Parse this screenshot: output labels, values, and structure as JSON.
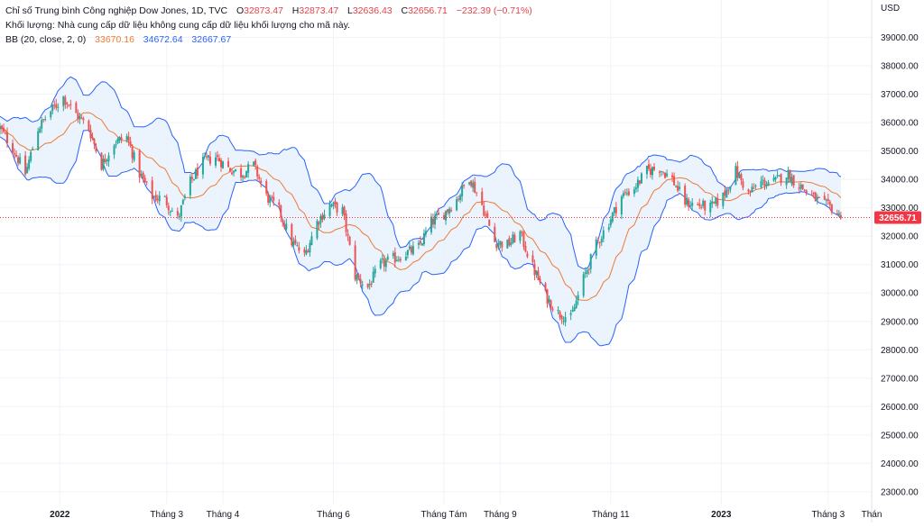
{
  "legend": {
    "title": "Chỉ số Trung bình Công nghiệp Dow Jones, 1D, TVC",
    "o_label": "O",
    "o_value": "32873.47",
    "h_label": "H",
    "h_value": "32873.47",
    "l_label": "L",
    "l_value": "32636.43",
    "c_label": "C",
    "c_value": "32656.71",
    "change": "−232.39 (−0.71%)",
    "volume_note": "Khối lượng: Nhà cung cấp dữ liệu không cung cấp dữ liệu khối lượng cho mã này.",
    "bb_label": "BB (20, close, 2, 0)",
    "bb_basis": "33670.16",
    "bb_upper": "34672.64",
    "bb_lower": "32667.67"
  },
  "colors": {
    "up": "#26a69a",
    "down": "#ef5350",
    "basis": "#f07a34",
    "band": "#2962ff",
    "band_fill": "#e8f1fb",
    "grid": "#f0f3fa",
    "price_tag": "#f23645"
  },
  "chart_data": {
    "type": "candlestick",
    "currency": "USD",
    "last_price_label": "32656.71",
    "last_price": 32656.71,
    "y_ticks": [
      23000,
      24000,
      25000,
      26000,
      27000,
      28000,
      29000,
      30000,
      31000,
      32000,
      33000,
      34000,
      35000,
      36000,
      37000,
      38000,
      39000
    ],
    "y_tick_labels": [
      "23000.00",
      "24000.00",
      "25000.00",
      "26000.00",
      "27000.00",
      "28000.00",
      "29000.00",
      "30000.00",
      "31000.00",
      "32000.00",
      "33000.00",
      "34000.00",
      "35000.00",
      "36000.00",
      "37000.00",
      "38000.00",
      "39000.00"
    ],
    "ylim": [
      22550,
      39750
    ],
    "x_range": [
      "2021-11-29",
      "2023-03-25"
    ],
    "x_ticks": [
      {
        "date": "2022-01-01",
        "label": "2022",
        "bold": true
      },
      {
        "date": "2022-03-01",
        "label": "Tháng 3",
        "bold": false
      },
      {
        "date": "2022-04-01",
        "label": "Tháng 4",
        "bold": false
      },
      {
        "date": "2022-06-01",
        "label": "Tháng 6",
        "bold": false
      },
      {
        "date": "2022-08-01",
        "label": "Tháng Tám",
        "bold": false
      },
      {
        "date": "2022-09-01",
        "label": "Tháng 9",
        "bold": false
      },
      {
        "date": "2022-11-01",
        "label": "Tháng 11",
        "bold": false
      },
      {
        "date": "2023-01-01",
        "label": "2023",
        "bold": true
      },
      {
        "date": "2023-03-01",
        "label": "Tháng 3",
        "bold": false
      },
      {
        "date": "2023-03-25",
        "label": "Thán",
        "bold": false
      }
    ],
    "close_path": [
      [
        "2021-11-29",
        35800
      ],
      [
        "2021-12-06",
        35100
      ],
      [
        "2021-12-13",
        34200
      ],
      [
        "2021-12-20",
        35800
      ],
      [
        "2021-12-27",
        36400
      ],
      [
        "2022-01-03",
        36900
      ],
      [
        "2022-01-10",
        36300
      ],
      [
        "2022-01-17",
        35800
      ],
      [
        "2022-01-24",
        34500
      ],
      [
        "2022-01-31",
        35300
      ],
      [
        "2022-02-07",
        35500
      ],
      [
        "2022-02-14",
        34200
      ],
      [
        "2022-02-21",
        33400
      ],
      [
        "2022-02-28",
        33300
      ],
      [
        "2022-03-07",
        32600
      ],
      [
        "2022-03-14",
        33900
      ],
      [
        "2022-03-21",
        34600
      ],
      [
        "2022-03-28",
        34800
      ],
      [
        "2022-04-04",
        34400
      ],
      [
        "2022-04-11",
        34200
      ],
      [
        "2022-04-18",
        34500
      ],
      [
        "2022-04-25",
        33400
      ],
      [
        "2022-05-02",
        32900
      ],
      [
        "2022-05-09",
        31800
      ],
      [
        "2022-05-16",
        31300
      ],
      [
        "2022-05-23",
        32500
      ],
      [
        "2022-05-30",
        33100
      ],
      [
        "2022-06-06",
        32900
      ],
      [
        "2022-06-13",
        30600
      ],
      [
        "2022-06-20",
        30200
      ],
      [
        "2022-06-27",
        31000
      ],
      [
        "2022-07-04",
        31200
      ],
      [
        "2022-07-11",
        31400
      ],
      [
        "2022-07-18",
        31600
      ],
      [
        "2022-07-25",
        32500
      ],
      [
        "2022-08-01",
        32800
      ],
      [
        "2022-08-08",
        33300
      ],
      [
        "2022-08-15",
        34100
      ],
      [
        "2022-08-22",
        33100
      ],
      [
        "2022-08-29",
        31800
      ],
      [
        "2022-09-05",
        31700
      ],
      [
        "2022-09-12",
        32100
      ],
      [
        "2022-09-19",
        30900
      ],
      [
        "2022-09-26",
        29900
      ],
      [
        "2022-10-03",
        29300
      ],
      [
        "2022-10-10",
        29100
      ],
      [
        "2022-10-17",
        30500
      ],
      [
        "2022-10-24",
        31700
      ],
      [
        "2022-10-31",
        32500
      ],
      [
        "2022-11-07",
        33400
      ],
      [
        "2022-11-14",
        33700
      ],
      [
        "2022-11-21",
        34300
      ],
      [
        "2022-11-28",
        34400
      ],
      [
        "2022-12-05",
        34000
      ],
      [
        "2022-12-12",
        33200
      ],
      [
        "2022-12-19",
        33100
      ],
      [
        "2022-12-26",
        33000
      ],
      [
        "2023-01-02",
        33400
      ],
      [
        "2023-01-09",
        34300
      ],
      [
        "2023-01-16",
        33500
      ],
      [
        "2023-01-23",
        33900
      ],
      [
        "2023-01-30",
        33900
      ],
      [
        "2023-02-06",
        34200
      ],
      [
        "2023-02-13",
        33800
      ],
      [
        "2023-02-20",
        33400
      ],
      [
        "2023-02-27",
        33100
      ],
      [
        "2023-03-03",
        33000
      ],
      [
        "2023-03-08",
        32656.71
      ]
    ]
  }
}
